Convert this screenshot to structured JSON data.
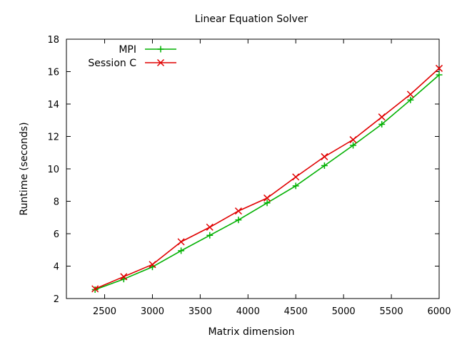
{
  "chart_data": {
    "type": "line",
    "title": "Linear Equation Solver",
    "xlabel": "Matrix dimension",
    "ylabel": "Runtime (seconds)",
    "xlim": [
      2100,
      6000
    ],
    "ylim": [
      2,
      18
    ],
    "xticks": [
      2500,
      3000,
      3500,
      4000,
      4500,
      5000,
      5500,
      6000
    ],
    "yticks": [
      2,
      4,
      6,
      8,
      10,
      12,
      14,
      16,
      18
    ],
    "grid": false,
    "legend_position": "top-left",
    "x": [
      2400,
      2700,
      3000,
      3300,
      3600,
      3900,
      4200,
      4500,
      4800,
      5100,
      5400,
      5700,
      6000
    ],
    "series": [
      {
        "name": "MPI",
        "color": "#00b000",
        "marker": "plus",
        "values": [
          2.55,
          3.2,
          3.95,
          4.95,
          5.9,
          6.85,
          7.9,
          8.95,
          10.2,
          11.45,
          12.75,
          14.25,
          15.8
        ]
      },
      {
        "name": "Session C",
        "color": "#e00000",
        "marker": "cross",
        "values": [
          2.6,
          3.35,
          4.1,
          5.5,
          6.4,
          7.4,
          8.2,
          9.5,
          10.75,
          11.8,
          13.2,
          14.6,
          16.2
        ]
      }
    ]
  }
}
